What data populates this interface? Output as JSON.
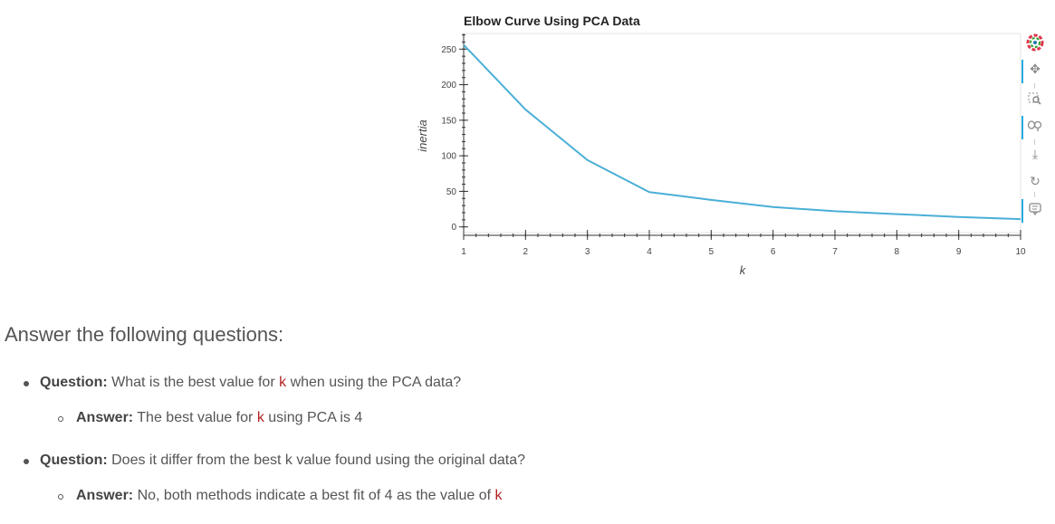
{
  "chart_data": {
    "type": "line",
    "title": "Elbow Curve Using PCA Data",
    "xlabel": "k",
    "ylabel": "inertia",
    "x": [
      1,
      2,
      3,
      4,
      5,
      6,
      7,
      8,
      9,
      10
    ],
    "xticks": [
      "1",
      "2",
      "3",
      "4",
      "5",
      "6",
      "7",
      "8",
      "9",
      "10"
    ],
    "yticks": [
      "0",
      "50",
      "100",
      "150",
      "200",
      "250"
    ],
    "series": [
      {
        "values": [
          256,
          165,
          94,
          49,
          38,
          28,
          22,
          18,
          14,
          11
        ],
        "color": "#4aafd6"
      }
    ],
    "xlim": [
      1,
      10
    ],
    "ylim": [
      -8,
      272
    ],
    "grid": false
  },
  "toolbar": {
    "tools": [
      "bokeh-logo-icon",
      "pan-icon",
      "box-zoom-icon",
      "wheel-zoom-icon",
      "save-icon",
      "reset-icon",
      "hover-icon"
    ]
  },
  "text": {
    "heading": "Answer the following questions:",
    "q1_label": "Question:",
    "q1_text_before": "What is the best value for",
    "q1_code": "k",
    "q1_text_after": "when using the PCA data?",
    "a1_label": "Answer:",
    "a1_text_before": "The best value for",
    "a1_code": "k",
    "a1_text_after": "using PCA is 4",
    "q2_label": "Question:",
    "q2_text": "Does it differ from the best k value found using the original data?",
    "a2_label": "Answer:",
    "a2_text_before": "No, both methods indicate a best fit of 4 as the value of",
    "a2_code": "k"
  }
}
